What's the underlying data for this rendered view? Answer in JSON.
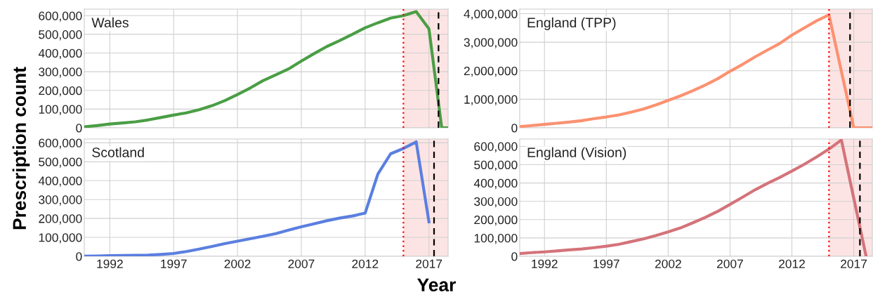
{
  "chart_data": [
    {
      "type": "line",
      "title": "Wales",
      "ylabel": "Prescription count",
      "tick_labels": "y",
      "grid": true,
      "marker": "none",
      "line_style": "solid",
      "x": [
        1990,
        1991,
        1992,
        1993,
        1994,
        1995,
        1996,
        1997,
        1998,
        1999,
        2000,
        2001,
        2002,
        2003,
        2004,
        2005,
        2006,
        2007,
        2008,
        2009,
        2010,
        2011,
        2012,
        2013,
        2014,
        2015,
        2016,
        2017,
        2018,
        2018.5
      ],
      "series": [
        {
          "color": "#4a9e45",
          "values": [
            5000,
            12000,
            20000,
            26000,
            32000,
            42000,
            55000,
            68000,
            80000,
            97000,
            118000,
            145000,
            178000,
            213000,
            252000,
            283000,
            315000,
            357000,
            397000,
            435000,
            466000,
            500000,
            535000,
            562000,
            587000,
            600000,
            622000,
            530000,
            0,
            0
          ]
        }
      ],
      "xlim": [
        1990,
        2018.5
      ],
      "xticks": [
        1992,
        1997,
        2002,
        2007,
        2012,
        2017
      ],
      "ylim": [
        0,
        635000
      ],
      "yticks": [
        {
          "value": 0,
          "label": "0"
        },
        {
          "value": 100000,
          "label": "100,000"
        },
        {
          "value": 200000,
          "label": "200,000"
        },
        {
          "value": 300000,
          "label": "300,000"
        },
        {
          "value": 400000,
          "label": "400,000"
        },
        {
          "value": 500000,
          "label": "500,000"
        },
        {
          "value": 600000,
          "label": "600,000"
        }
      ],
      "ref_lines": [
        {
          "axis": "x",
          "value": 2015,
          "color": "#ff0000",
          "line_style": "dotted"
        },
        {
          "axis": "x",
          "value": 2017.75,
          "color": "#000000",
          "line_style": "dashed"
        }
      ],
      "bands": [
        {
          "axis": "x",
          "from": 2015,
          "to": 2018.5,
          "color": "#fde4e4"
        }
      ]
    },
    {
      "type": "line",
      "title": "England (TPP)",
      "tick_labels": "y",
      "grid": true,
      "marker": "none",
      "line_style": "solid",
      "x": [
        1990,
        1991,
        1992,
        1993,
        1994,
        1995,
        1996,
        1997,
        1998,
        1999,
        2000,
        2001,
        2002,
        2003,
        2004,
        2005,
        2006,
        2007,
        2008,
        2009,
        2010,
        2011,
        2012,
        2013,
        2014,
        2015,
        2016,
        2017,
        2018,
        2018.5
      ],
      "series": [
        {
          "color": "#fc9170",
          "values": [
            40000,
            80000,
            120000,
            160000,
            200000,
            250000,
            320000,
            380000,
            450000,
            550000,
            660000,
            800000,
            960000,
            1120000,
            1300000,
            1500000,
            1720000,
            1980000,
            2220000,
            2480000,
            2720000,
            2950000,
            3250000,
            3500000,
            3750000,
            3960000,
            1980000,
            0,
            0,
            0
          ]
        }
      ],
      "xlim": [
        1990,
        2018.5
      ],
      "xticks": [
        1992,
        1997,
        2002,
        2007,
        2012,
        2017
      ],
      "ylim": [
        0,
        4160000
      ],
      "yticks": [
        {
          "value": 0,
          "label": "0"
        },
        {
          "value": 1000000,
          "label": "1,000,000"
        },
        {
          "value": 2000000,
          "label": "2,000,000"
        },
        {
          "value": 3000000,
          "label": "3,000,000"
        },
        {
          "value": 4000000,
          "label": "4,000,000"
        }
      ],
      "ref_lines": [
        {
          "axis": "x",
          "value": 2015,
          "color": "#ff0000",
          "line_style": "dotted"
        },
        {
          "axis": "x",
          "value": 2016.7,
          "color": "#000000",
          "line_style": "dashed"
        }
      ],
      "bands": [
        {
          "axis": "x",
          "from": 2015,
          "to": 2018.5,
          "color": "#fde4e4"
        }
      ]
    },
    {
      "type": "line",
      "title": "Scotland",
      "xlabel": "Year",
      "grid": true,
      "marker": "none",
      "line_style": "solid",
      "x": [
        1990,
        1991,
        1992,
        1993,
        1994,
        1995,
        1996,
        1997,
        1998,
        1999,
        2000,
        2001,
        2002,
        2003,
        2004,
        2005,
        2006,
        2007,
        2008,
        2009,
        2010,
        2011,
        2012,
        2013,
        2014,
        2015,
        2016,
        2017
      ],
      "series": [
        {
          "color": "#5b7fe0",
          "values": [
            1000,
            2000,
            3000,
            4000,
            5000,
            6000,
            10000,
            15000,
            25000,
            38000,
            52000,
            67000,
            80000,
            93000,
            106000,
            120000,
            138000,
            156000,
            172000,
            188000,
            202000,
            213000,
            228000,
            435000,
            542000,
            570000,
            605000,
            182000
          ]
        }
      ],
      "xlim": [
        1990,
        2018.5
      ],
      "xticks": [
        1992,
        1997,
        2002,
        2007,
        2012,
        2017
      ],
      "ylim": [
        0,
        620000
      ],
      "yticks": [
        {
          "value": 0,
          "label": "0"
        },
        {
          "value": 100000,
          "label": "100,000"
        },
        {
          "value": 200000,
          "label": "200,000"
        },
        {
          "value": 300000,
          "label": "300,000"
        },
        {
          "value": 400000,
          "label": "400,000"
        },
        {
          "value": 500000,
          "label": "500,000"
        },
        {
          "value": 600000,
          "label": "600,000"
        }
      ],
      "ref_lines": [
        {
          "axis": "x",
          "value": 2015,
          "color": "#ff0000",
          "line_style": "dotted"
        },
        {
          "axis": "x",
          "value": 2017.4,
          "color": "#000000",
          "line_style": "dashed"
        }
      ],
      "bands": [
        {
          "axis": "x",
          "from": 2015,
          "to": 2018.5,
          "color": "#fde4e4"
        }
      ]
    },
    {
      "type": "line",
      "title": "England (Vision)",
      "grid": true,
      "marker": "none",
      "line_style": "solid",
      "x": [
        1990,
        1991,
        1992,
        1993,
        1994,
        1995,
        1996,
        1997,
        1998,
        1999,
        2000,
        2001,
        2002,
        2003,
        2004,
        2005,
        2006,
        2007,
        2008,
        2009,
        2010,
        2011,
        2012,
        2013,
        2014,
        2015,
        2016,
        2017,
        2018
      ],
      "series": [
        {
          "color": "#d4737a",
          "values": [
            15000,
            20000,
            24000,
            29000,
            35000,
            40000,
            47000,
            55000,
            65000,
            80000,
            95000,
            113000,
            133000,
            155000,
            183000,
            212000,
            245000,
            283000,
            322000,
            362000,
            397000,
            430000,
            465000,
            502000,
            542000,
            585000,
            635000,
            317000,
            0
          ]
        }
      ],
      "xlim": [
        1990,
        2018.5
      ],
      "xticks": [
        1992,
        1997,
        2002,
        2007,
        2012,
        2017
      ],
      "ylim": [
        0,
        640000
      ],
      "yticks": [
        {
          "value": 0,
          "label": "0"
        },
        {
          "value": 100000,
          "label": "100,000"
        },
        {
          "value": 200000,
          "label": "200,000"
        },
        {
          "value": 300000,
          "label": "300,000"
        },
        {
          "value": 400000,
          "label": "400,000"
        },
        {
          "value": 500000,
          "label": "500,000"
        },
        {
          "value": 600000,
          "label": "600,000"
        }
      ],
      "ref_lines": [
        {
          "axis": "x",
          "value": 2015,
          "color": "#ff0000",
          "line_style": "dotted"
        },
        {
          "axis": "x",
          "value": 2017.5,
          "color": "#000000",
          "line_style": "dashed"
        }
      ],
      "bands": [
        {
          "axis": "x",
          "from": 2015,
          "to": 2018.5,
          "color": "#fde4e4"
        }
      ]
    }
  ]
}
